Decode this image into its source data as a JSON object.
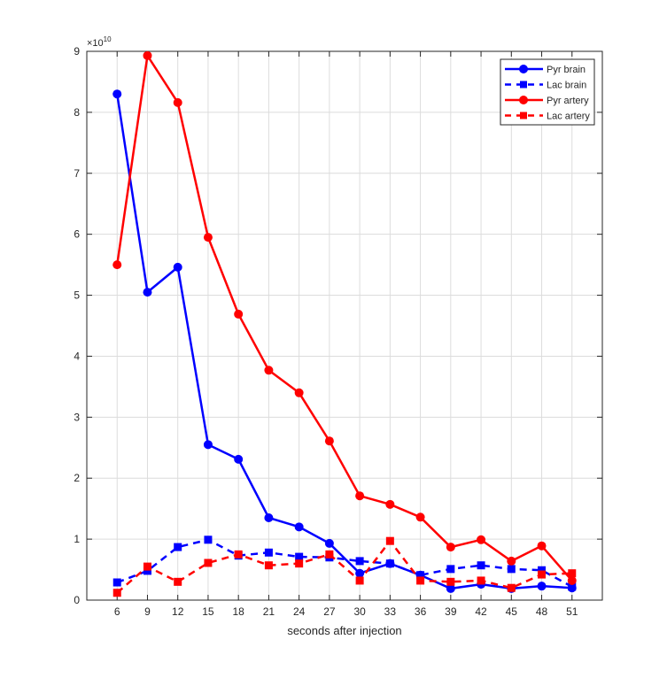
{
  "chart_data": {
    "type": "line",
    "title": "",
    "xlabel": "seconds after injection",
    "ylabel": "",
    "y_exponent_label": "×10",
    "y_exponent_power": "10",
    "x": [
      6,
      9,
      12,
      15,
      18,
      21,
      24,
      27,
      30,
      33,
      36,
      39,
      42,
      45,
      48,
      51
    ],
    "xlim": [
      3,
      54
    ],
    "ylim": [
      0,
      9
    ],
    "yticks": [
      0,
      1,
      2,
      3,
      4,
      5,
      6,
      7,
      8,
      9
    ],
    "grid": true,
    "legend_position": "top-right",
    "series": [
      {
        "name": "Pyr brain",
        "color": "#0000ff",
        "style": "solid",
        "marker": "circle",
        "values": [
          8.3,
          5.05,
          5.46,
          2.55,
          2.31,
          1.35,
          1.2,
          0.93,
          0.44,
          0.6,
          0.41,
          0.19,
          0.26,
          0.19,
          0.23,
          0.2
        ]
      },
      {
        "name": "Lac brain",
        "color": "#0000ff",
        "style": "dashed",
        "marker": "square",
        "values": [
          0.29,
          0.48,
          0.87,
          0.99,
          0.73,
          0.78,
          0.71,
          0.7,
          0.64,
          0.6,
          0.41,
          0.51,
          0.57,
          0.51,
          0.49,
          0.22
        ]
      },
      {
        "name": "Pyr artery",
        "color": "#ff0000",
        "style": "solid",
        "marker": "circle",
        "values": [
          5.5,
          8.93,
          8.16,
          5.95,
          4.69,
          3.77,
          3.4,
          2.61,
          1.71,
          1.57,
          1.36,
          0.87,
          0.99,
          0.64,
          0.89,
          0.32
        ]
      },
      {
        "name": "Lac artery",
        "color": "#ff0000",
        "style": "dashed",
        "marker": "square",
        "values": [
          0.12,
          0.55,
          0.3,
          0.61,
          0.75,
          0.57,
          0.6,
          0.75,
          0.32,
          0.97,
          0.32,
          0.3,
          0.32,
          0.2,
          0.42,
          0.44
        ]
      }
    ]
  }
}
